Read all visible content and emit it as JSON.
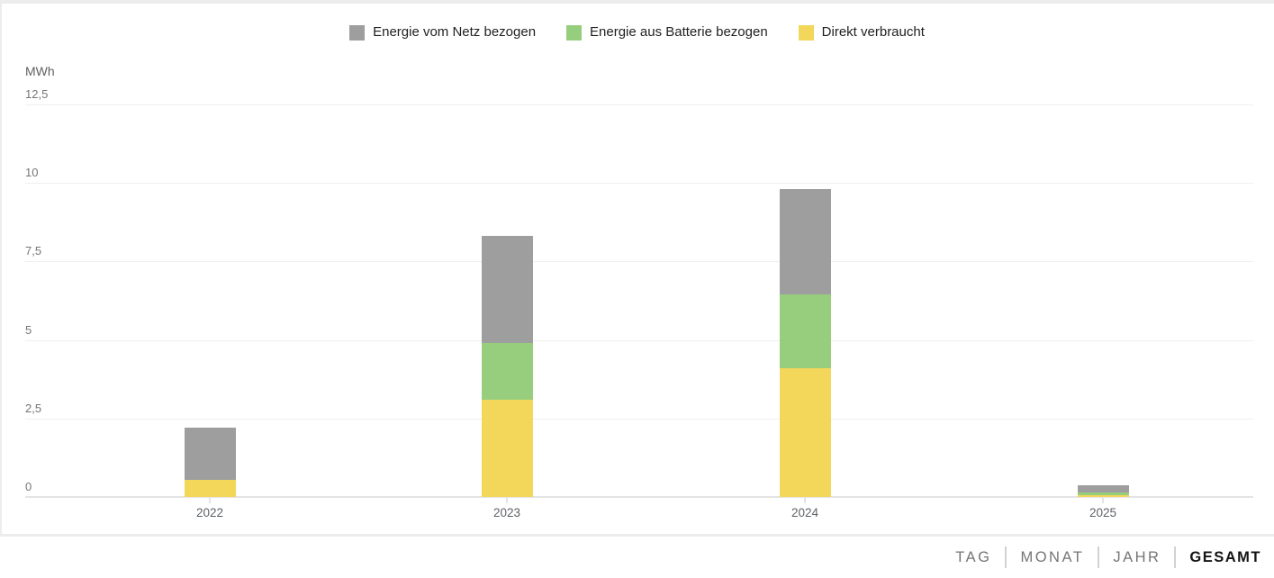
{
  "legend": {
    "items": [
      {
        "label": "Energie vom Netz bezogen",
        "color": "#9e9e9e"
      },
      {
        "label": "Energie aus Batterie bezogen",
        "color": "#96ce7d"
      },
      {
        "label": "Direkt verbraucht",
        "color": "#f2d75b"
      }
    ]
  },
  "y_axis": {
    "unit_label": "MWh",
    "ticks": [
      {
        "value": 12.5,
        "label": "12,5"
      },
      {
        "value": 10,
        "label": "10"
      },
      {
        "value": 7.5,
        "label": "7,5"
      },
      {
        "value": 5,
        "label": "5"
      },
      {
        "value": 2.5,
        "label": "2,5"
      },
      {
        "value": 0,
        "label": "0"
      }
    ]
  },
  "chart_data": {
    "type": "bar",
    "stacked": true,
    "title": "",
    "ylabel": "MWh",
    "ylim": [
      0,
      12.5
    ],
    "yticks": [
      0,
      2.5,
      5,
      7.5,
      10,
      12.5
    ],
    "grid": true,
    "legend_position": "top",
    "categories": [
      "2022",
      "2023",
      "2024",
      "2025"
    ],
    "series": [
      {
        "name": "Direkt verbraucht",
        "color": "#f2d75b",
        "values": [
          0.55,
          3.1,
          4.1,
          0.07
        ]
      },
      {
        "name": "Energie aus Batterie bezogen",
        "color": "#96ce7d",
        "values": [
          0.0,
          1.8,
          2.35,
          0.07
        ]
      },
      {
        "name": "Energie vom Netz bezogen",
        "color": "#9e9e9e",
        "values": [
          1.65,
          3.4,
          3.35,
          0.23
        ]
      }
    ]
  },
  "tabs": {
    "items": [
      {
        "label": "TAG",
        "active": false
      },
      {
        "label": "MONAT",
        "active": false
      },
      {
        "label": "JAHR",
        "active": false
      },
      {
        "label": "GESAMT",
        "active": true
      }
    ]
  }
}
